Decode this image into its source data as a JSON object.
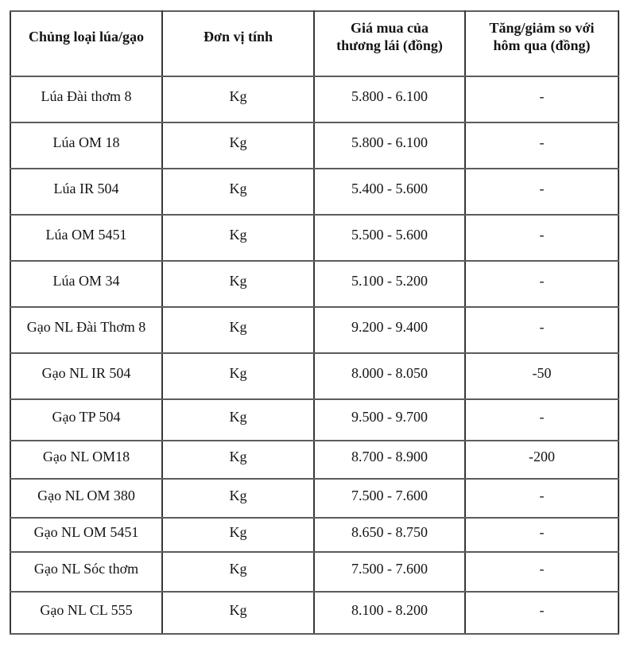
{
  "colors": {
    "background": "#ffffff",
    "text": "#141414",
    "border_vertical": "#383838",
    "border_horizontal": "#5c5c5c"
  },
  "table": {
    "headers": [
      "Chủng loại lúa/gạo",
      "Đơn vị tính",
      "Giá mua của thương lái (đồng)",
      "Tăng/giảm so với hôm qua (đồng)"
    ],
    "rows": [
      [
        "Lúa Đài thơm 8",
        "Kg",
        "5.800 - 6.100",
        "-"
      ],
      [
        "Lúa OM 18",
        "Kg",
        "5.800 - 6.100",
        "-"
      ],
      [
        "Lúa IR 504",
        "Kg",
        "5.400 - 5.600",
        "-"
      ],
      [
        "Lúa OM 5451",
        "Kg",
        "5.500 - 5.600",
        "-"
      ],
      [
        "Lúa OM 34",
        "Kg",
        "5.100 - 5.200",
        "-"
      ],
      [
        "Gạo NL Đài Thơm 8",
        "Kg",
        "9.200 - 9.400",
        "-"
      ],
      [
        "Gạo NL IR 504",
        "Kg",
        "8.000 - 8.050",
        "-50"
      ],
      [
        "Gạo TP 504",
        "Kg",
        "9.500 - 9.700",
        "-"
      ],
      [
        "Gạo NL OM18",
        "Kg",
        "8.700 - 8.900",
        "-200"
      ],
      [
        "Gạo NL OM 380",
        "Kg",
        "7.500 - 7.600",
        "-"
      ],
      [
        "Gạo NL OM 5451",
        "Kg",
        "8.650 - 8.750",
        "-"
      ],
      [
        "Gạo NL Sóc thơm",
        "Kg",
        "7.500 - 7.600",
        "-"
      ],
      [
        "Gạo NL CL 555",
        "Kg",
        "8.100 - 8.200",
        "-"
      ]
    ]
  }
}
